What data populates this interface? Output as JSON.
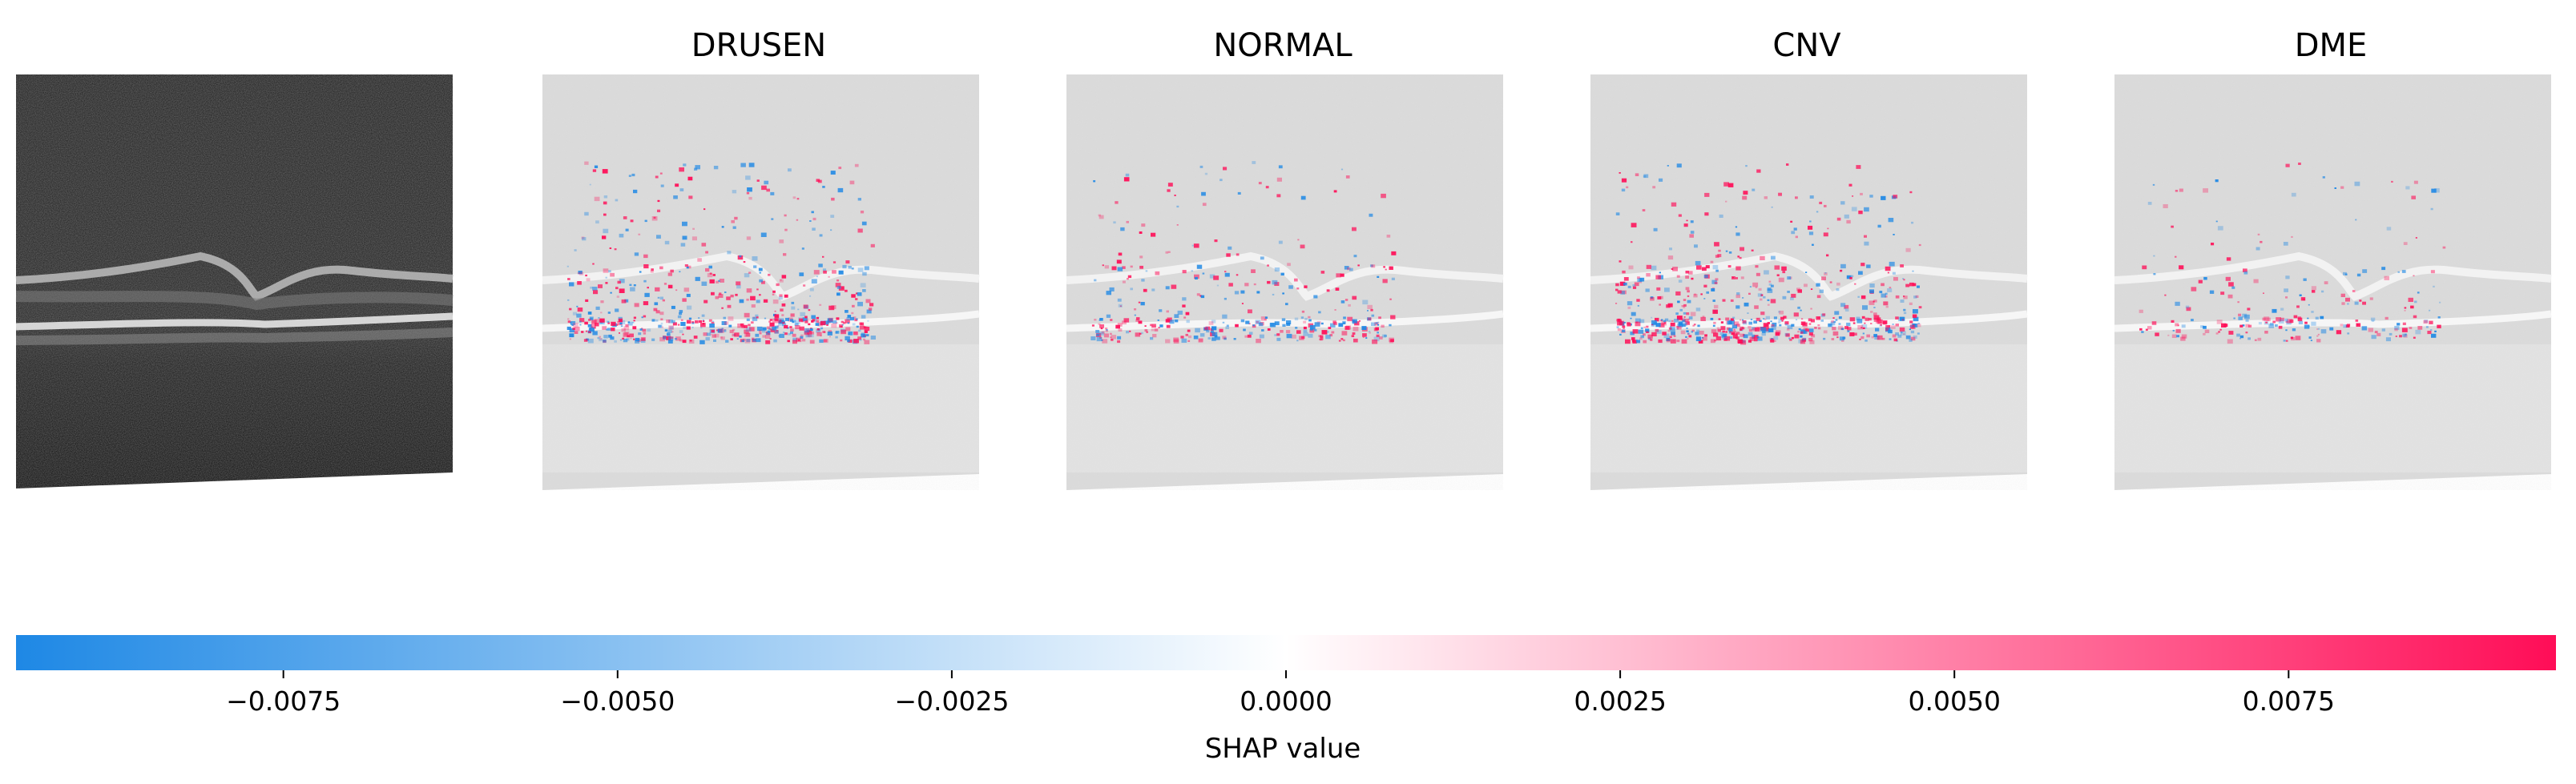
{
  "panels": [
    {
      "id": "input",
      "title": ""
    },
    {
      "id": "drusen",
      "title": "DRUSEN"
    },
    {
      "id": "normal",
      "title": "NORMAL"
    },
    {
      "id": "cnv",
      "title": "CNV"
    },
    {
      "id": "dme",
      "title": "DME"
    }
  ],
  "chart_data": {
    "type": "heatmap",
    "title": "",
    "panels": [
      "DRUSEN",
      "NORMAL",
      "CNV",
      "DME"
    ],
    "colorbar": {
      "label": "SHAP value",
      "range": [
        -0.0095,
        0.0095
      ],
      "ticks": [
        -0.0075,
        -0.005,
        -0.0025,
        0.0,
        0.0025,
        0.005,
        0.0075
      ],
      "tick_labels": [
        "−0.0075",
        "−0.0050",
        "−0.0025",
        "0.0000",
        "0.0025",
        "0.0050",
        "0.0075"
      ],
      "colors": {
        "negative": "#1E88E5",
        "zero": "#FFFFFF",
        "positive": "#FF0D57"
      }
    }
  }
}
